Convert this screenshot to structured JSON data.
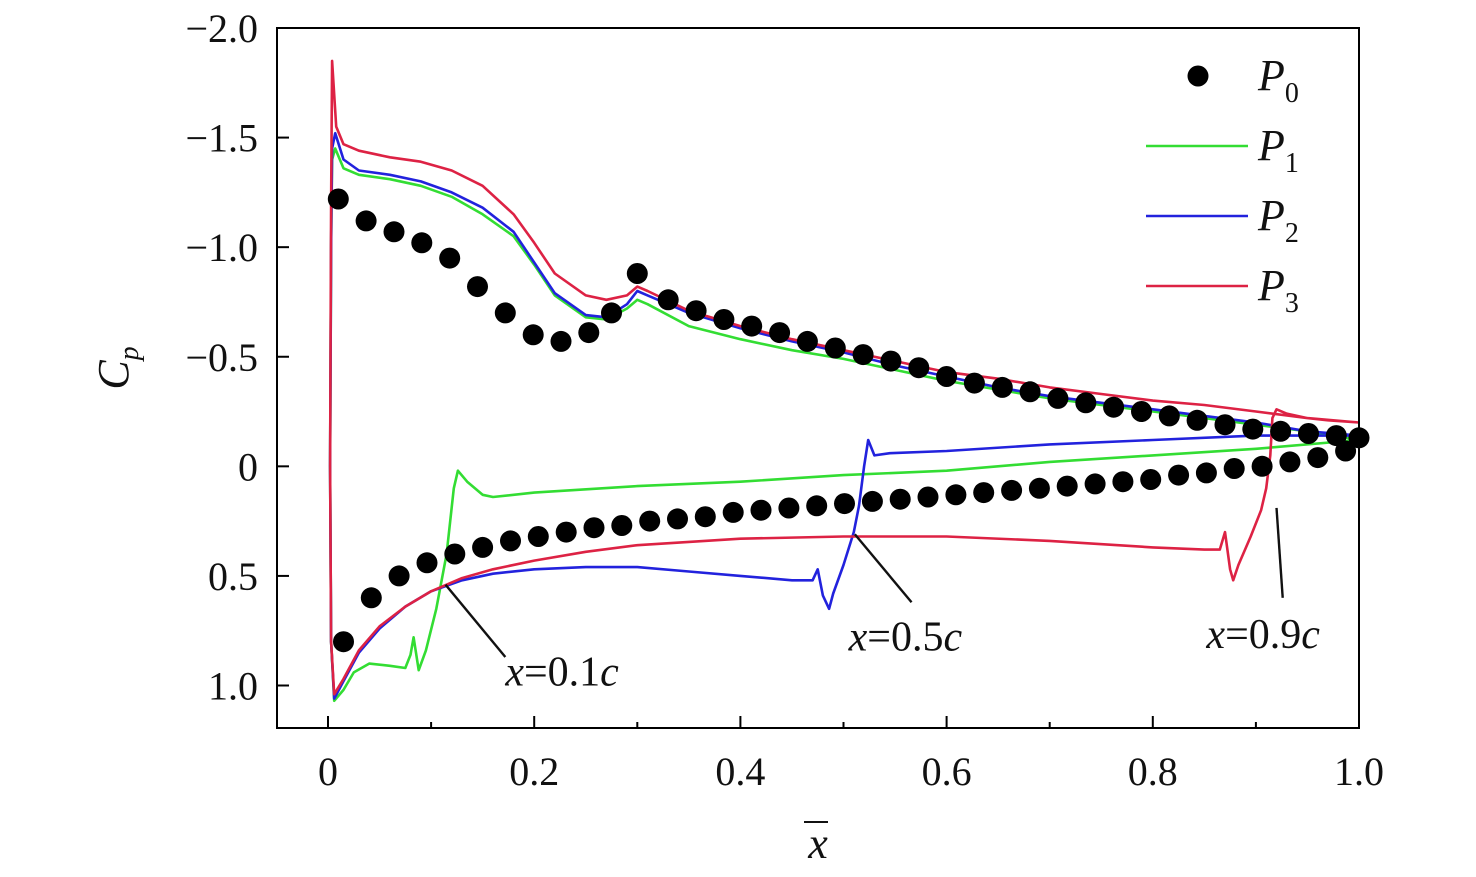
{
  "chart_data": {
    "type": "line",
    "xlabel": "x",
    "ylabel": "C",
    "ylabel_sub": "p",
    "xlim": [
      -0.025,
      1.0
    ],
    "ylim": [
      -2.0,
      1.2
    ],
    "y_inverted": true,
    "grid": false,
    "legend_position": "top-right",
    "x_ticks": [
      {
        "value": 0,
        "label": "0"
      },
      {
        "value": 0.2,
        "label": "0.2"
      },
      {
        "value": 0.4,
        "label": "0.4"
      },
      {
        "value": 0.6,
        "label": "0.6"
      },
      {
        "value": 0.8,
        "label": "0.8"
      },
      {
        "value": 1.0,
        "label": "1.0"
      }
    ],
    "y_ticks": [
      {
        "value": -2.0,
        "label": "−2.0"
      },
      {
        "value": -1.5,
        "label": "−1.5"
      },
      {
        "value": -1.0,
        "label": "−1.0"
      },
      {
        "value": -0.5,
        "label": "−0.5"
      },
      {
        "value": 0,
        "label": "0"
      },
      {
        "value": 0.5,
        "label": "0.5"
      },
      {
        "value": 1.0,
        "label": "1.0"
      }
    ],
    "series": [
      {
        "name": "P",
        "sub": "0",
        "kind": "scatter",
        "color": "#000000",
        "upper": [
          [
            0.01,
            -1.22
          ],
          [
            0.037,
            -1.12
          ],
          [
            0.064,
            -1.07
          ],
          [
            0.091,
            -1.02
          ],
          [
            0.118,
            -0.95
          ],
          [
            0.145,
            -0.82
          ],
          [
            0.172,
            -0.7
          ],
          [
            0.199,
            -0.6
          ],
          [
            0.226,
            -0.57
          ],
          [
            0.253,
            -0.61
          ],
          [
            0.275,
            -0.7
          ],
          [
            0.3,
            -0.88
          ],
          [
            0.33,
            -0.76
          ],
          [
            0.357,
            -0.71
          ],
          [
            0.384,
            -0.67
          ],
          [
            0.411,
            -0.64
          ],
          [
            0.438,
            -0.61
          ],
          [
            0.465,
            -0.57
          ],
          [
            0.492,
            -0.54
          ],
          [
            0.519,
            -0.51
          ],
          [
            0.546,
            -0.48
          ],
          [
            0.573,
            -0.45
          ],
          [
            0.6,
            -0.41
          ],
          [
            0.627,
            -0.38
          ],
          [
            0.654,
            -0.36
          ],
          [
            0.681,
            -0.34
          ],
          [
            0.708,
            -0.31
          ],
          [
            0.735,
            -0.29
          ],
          [
            0.762,
            -0.27
          ],
          [
            0.789,
            -0.25
          ],
          [
            0.816,
            -0.23
          ],
          [
            0.843,
            -0.21
          ],
          [
            0.87,
            -0.19
          ],
          [
            0.897,
            -0.17
          ],
          [
            0.924,
            -0.16
          ],
          [
            0.951,
            -0.15
          ],
          [
            0.978,
            -0.14
          ],
          [
            1.0,
            -0.13
          ]
        ],
        "lower": [
          [
            0.015,
            0.8
          ],
          [
            0.042,
            0.6
          ],
          [
            0.069,
            0.5
          ],
          [
            0.096,
            0.44
          ],
          [
            0.123,
            0.4
          ],
          [
            0.15,
            0.37
          ],
          [
            0.177,
            0.34
          ],
          [
            0.204,
            0.32
          ],
          [
            0.231,
            0.3
          ],
          [
            0.258,
            0.28
          ],
          [
            0.285,
            0.27
          ],
          [
            0.312,
            0.25
          ],
          [
            0.339,
            0.24
          ],
          [
            0.366,
            0.23
          ],
          [
            0.393,
            0.21
          ],
          [
            0.42,
            0.2
          ],
          [
            0.447,
            0.19
          ],
          [
            0.474,
            0.18
          ],
          [
            0.501,
            0.17
          ],
          [
            0.528,
            0.16
          ],
          [
            0.555,
            0.15
          ],
          [
            0.582,
            0.14
          ],
          [
            0.609,
            0.13
          ],
          [
            0.636,
            0.12
          ],
          [
            0.663,
            0.11
          ],
          [
            0.69,
            0.1
          ],
          [
            0.717,
            0.09
          ],
          [
            0.744,
            0.08
          ],
          [
            0.771,
            0.07
          ],
          [
            0.798,
            0.06
          ],
          [
            0.825,
            0.04
          ],
          [
            0.852,
            0.03
          ],
          [
            0.879,
            0.01
          ],
          [
            0.906,
            0.0
          ],
          [
            0.933,
            -0.02
          ],
          [
            0.96,
            -0.04
          ],
          [
            0.987,
            -0.07
          ]
        ]
      },
      {
        "name": "P",
        "sub": "1",
        "kind": "line",
        "color": "#33dd33",
        "points": [
          [
            1.0,
            -0.12
          ],
          [
            0.95,
            -0.16
          ],
          [
            0.9,
            -0.19
          ],
          [
            0.85,
            -0.22
          ],
          [
            0.8,
            -0.25
          ],
          [
            0.75,
            -0.28
          ],
          [
            0.7,
            -0.31
          ],
          [
            0.65,
            -0.35
          ],
          [
            0.6,
            -0.39
          ],
          [
            0.55,
            -0.44
          ],
          [
            0.5,
            -0.49
          ],
          [
            0.45,
            -0.53
          ],
          [
            0.4,
            -0.58
          ],
          [
            0.35,
            -0.64
          ],
          [
            0.31,
            -0.74
          ],
          [
            0.3,
            -0.76
          ],
          [
            0.29,
            -0.72
          ],
          [
            0.27,
            -0.67
          ],
          [
            0.25,
            -0.68
          ],
          [
            0.22,
            -0.78
          ],
          [
            0.2,
            -0.92
          ],
          [
            0.18,
            -1.05
          ],
          [
            0.15,
            -1.15
          ],
          [
            0.12,
            -1.23
          ],
          [
            0.09,
            -1.28
          ],
          [
            0.06,
            -1.31
          ],
          [
            0.03,
            -1.33
          ],
          [
            0.015,
            -1.36
          ],
          [
            0.007,
            -1.45
          ],
          [
            0.004,
            -1.4
          ],
          [
            0.003,
            -1.0
          ],
          [
            0.002,
            0.0
          ],
          [
            0.003,
            0.8
          ],
          [
            0.006,
            1.07
          ],
          [
            0.015,
            1.02
          ],
          [
            0.025,
            0.94
          ],
          [
            0.04,
            0.9
          ],
          [
            0.06,
            0.91
          ],
          [
            0.075,
            0.92
          ],
          [
            0.08,
            0.86
          ],
          [
            0.083,
            0.78
          ],
          [
            0.088,
            0.93
          ],
          [
            0.095,
            0.84
          ],
          [
            0.105,
            0.65
          ],
          [
            0.115,
            0.4
          ],
          [
            0.122,
            0.1
          ],
          [
            0.126,
            0.02
          ],
          [
            0.135,
            0.07
          ],
          [
            0.15,
            0.13
          ],
          [
            0.16,
            0.14
          ],
          [
            0.2,
            0.12
          ],
          [
            0.3,
            0.09
          ],
          [
            0.4,
            0.07
          ],
          [
            0.5,
            0.04
          ],
          [
            0.6,
            0.02
          ],
          [
            0.7,
            -0.02
          ],
          [
            0.8,
            -0.05
          ],
          [
            0.9,
            -0.08
          ],
          [
            1.0,
            -0.12
          ]
        ]
      },
      {
        "name": "P",
        "sub": "2",
        "kind": "line",
        "color": "#2222dd",
        "points": [
          [
            1.0,
            -0.14
          ],
          [
            0.95,
            -0.16
          ],
          [
            0.9,
            -0.2
          ],
          [
            0.85,
            -0.23
          ],
          [
            0.8,
            -0.26
          ],
          [
            0.75,
            -0.29
          ],
          [
            0.7,
            -0.32
          ],
          [
            0.65,
            -0.36
          ],
          [
            0.6,
            -0.41
          ],
          [
            0.55,
            -0.46
          ],
          [
            0.5,
            -0.52
          ],
          [
            0.45,
            -0.57
          ],
          [
            0.4,
            -0.63
          ],
          [
            0.35,
            -0.7
          ],
          [
            0.31,
            -0.78
          ],
          [
            0.3,
            -0.8
          ],
          [
            0.29,
            -0.74
          ],
          [
            0.27,
            -0.68
          ],
          [
            0.25,
            -0.69
          ],
          [
            0.22,
            -0.79
          ],
          [
            0.2,
            -0.93
          ],
          [
            0.18,
            -1.07
          ],
          [
            0.15,
            -1.18
          ],
          [
            0.12,
            -1.25
          ],
          [
            0.09,
            -1.3
          ],
          [
            0.06,
            -1.33
          ],
          [
            0.03,
            -1.35
          ],
          [
            0.015,
            -1.4
          ],
          [
            0.007,
            -1.52
          ],
          [
            0.004,
            -1.45
          ],
          [
            0.003,
            -1.0
          ],
          [
            0.002,
            0.0
          ],
          [
            0.003,
            0.8
          ],
          [
            0.006,
            1.06
          ],
          [
            0.015,
            0.98
          ],
          [
            0.03,
            0.85
          ],
          [
            0.05,
            0.74
          ],
          [
            0.075,
            0.64
          ],
          [
            0.1,
            0.57
          ],
          [
            0.13,
            0.52
          ],
          [
            0.16,
            0.49
          ],
          [
            0.2,
            0.47
          ],
          [
            0.25,
            0.46
          ],
          [
            0.3,
            0.46
          ],
          [
            0.35,
            0.48
          ],
          [
            0.4,
            0.5
          ],
          [
            0.45,
            0.52
          ],
          [
            0.47,
            0.52
          ],
          [
            0.475,
            0.47
          ],
          [
            0.48,
            0.59
          ],
          [
            0.486,
            0.65
          ],
          [
            0.49,
            0.58
          ],
          [
            0.5,
            0.45
          ],
          [
            0.51,
            0.3
          ],
          [
            0.515,
            0.18
          ],
          [
            0.52,
            0.0
          ],
          [
            0.524,
            -0.12
          ],
          [
            0.53,
            -0.05
          ],
          [
            0.545,
            -0.06
          ],
          [
            0.6,
            -0.07
          ],
          [
            0.7,
            -0.1
          ],
          [
            0.8,
            -0.12
          ],
          [
            0.9,
            -0.14
          ],
          [
            1.0,
            -0.14
          ]
        ]
      },
      {
        "name": "P",
        "sub": "3",
        "kind": "line",
        "color": "#dd2244",
        "points": [
          [
            1.0,
            -0.2
          ],
          [
            0.95,
            -0.22
          ],
          [
            0.9,
            -0.25
          ],
          [
            0.85,
            -0.28
          ],
          [
            0.8,
            -0.3
          ],
          [
            0.75,
            -0.33
          ],
          [
            0.7,
            -0.36
          ],
          [
            0.65,
            -0.4
          ],
          [
            0.6,
            -0.43
          ],
          [
            0.55,
            -0.48
          ],
          [
            0.5,
            -0.53
          ],
          [
            0.45,
            -0.58
          ],
          [
            0.4,
            -0.64
          ],
          [
            0.35,
            -0.71
          ],
          [
            0.31,
            -0.8
          ],
          [
            0.3,
            -0.82
          ],
          [
            0.29,
            -0.78
          ],
          [
            0.27,
            -0.76
          ],
          [
            0.25,
            -0.78
          ],
          [
            0.22,
            -0.88
          ],
          [
            0.2,
            -1.02
          ],
          [
            0.18,
            -1.15
          ],
          [
            0.15,
            -1.28
          ],
          [
            0.12,
            -1.35
          ],
          [
            0.09,
            -1.39
          ],
          [
            0.06,
            -1.41
          ],
          [
            0.03,
            -1.44
          ],
          [
            0.015,
            -1.47
          ],
          [
            0.008,
            -1.55
          ],
          [
            0.004,
            -1.85
          ],
          [
            0.003,
            -1.2
          ],
          [
            0.002,
            0.0
          ],
          [
            0.003,
            0.8
          ],
          [
            0.006,
            1.04
          ],
          [
            0.015,
            0.97
          ],
          [
            0.03,
            0.84
          ],
          [
            0.05,
            0.73
          ],
          [
            0.075,
            0.64
          ],
          [
            0.1,
            0.57
          ],
          [
            0.13,
            0.51
          ],
          [
            0.16,
            0.47
          ],
          [
            0.2,
            0.43
          ],
          [
            0.25,
            0.39
          ],
          [
            0.3,
            0.36
          ],
          [
            0.4,
            0.33
          ],
          [
            0.5,
            0.32
          ],
          [
            0.6,
            0.32
          ],
          [
            0.7,
            0.34
          ],
          [
            0.8,
            0.37
          ],
          [
            0.85,
            0.38
          ],
          [
            0.865,
            0.38
          ],
          [
            0.87,
            0.3
          ],
          [
            0.875,
            0.47
          ],
          [
            0.878,
            0.52
          ],
          [
            0.883,
            0.45
          ],
          [
            0.895,
            0.32
          ],
          [
            0.905,
            0.2
          ],
          [
            0.91,
            0.1
          ],
          [
            0.914,
            -0.05
          ],
          [
            0.916,
            -0.22
          ],
          [
            0.92,
            -0.26
          ],
          [
            0.93,
            -0.24
          ],
          [
            0.95,
            -0.22
          ],
          [
            0.97,
            -0.21
          ],
          [
            1.0,
            -0.2
          ]
        ]
      }
    ],
    "annotations": [
      {
        "var": "x",
        "rest": "=0.1",
        "unit": "c",
        "from": [
          0.114,
          0.54
        ],
        "to": [
          0.172,
          0.87
        ],
        "label_at": [
          0.172,
          1.0
        ]
      },
      {
        "var": "x",
        "rest": "=0.5",
        "unit": "c",
        "from": [
          0.511,
          0.31
        ],
        "to": [
          0.566,
          0.62
        ],
        "label_at": [
          0.505,
          0.84
        ]
      },
      {
        "var": "x",
        "rest": "=0.9",
        "unit": "c",
        "from": [
          0.92,
          0.19
        ],
        "to": [
          0.926,
          0.6
        ],
        "label_at": [
          0.852,
          0.83
        ]
      }
    ]
  }
}
